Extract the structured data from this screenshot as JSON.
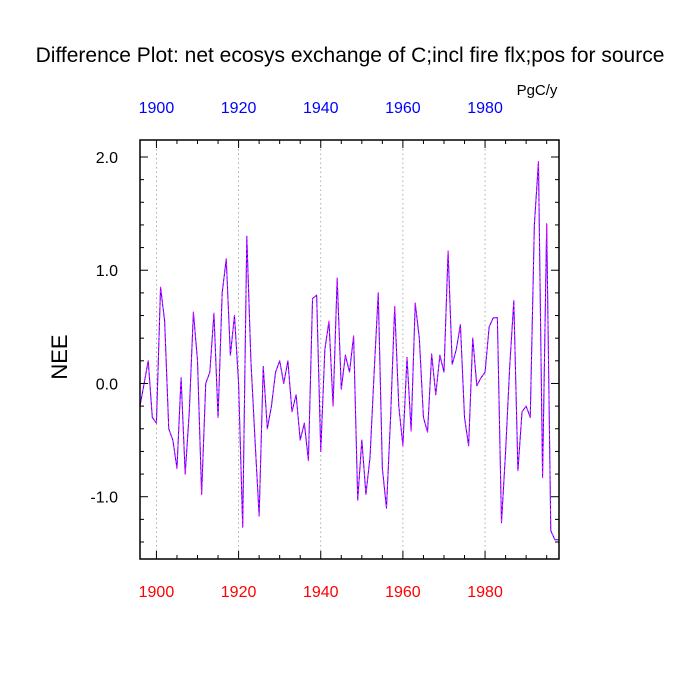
{
  "chart_data": {
    "type": "line",
    "title": "Difference Plot: net ecosys exchange of C;incl fire flx;pos for source",
    "units": "PgC/y",
    "ylabel": "NEE",
    "xlabel": "",
    "xlim": [
      1896,
      1998
    ],
    "ylim": [
      -1.55,
      2.15
    ],
    "x_ticks": [
      1900,
      1920,
      1940,
      1960,
      1980
    ],
    "x_tick_labels": [
      "1900",
      "1920",
      "1940",
      "1960",
      "1980"
    ],
    "y_ticks": [
      -1.0,
      0.0,
      1.0,
      2.0
    ],
    "y_tick_labels": [
      "-1.0",
      "0.0",
      "1.0",
      "2.0"
    ],
    "grid": "vertical dotted at major x ticks",
    "colors": {
      "bottom_axis_labels": "#ff0000",
      "top_axis_labels": "#0000ff",
      "series_a": "#0000ff",
      "series_b": "#ff00ff"
    },
    "x": [
      1896,
      1897,
      1898,
      1899,
      1900,
      1901,
      1902,
      1903,
      1904,
      1905,
      1906,
      1907,
      1908,
      1909,
      1910,
      1911,
      1912,
      1913,
      1914,
      1915,
      1916,
      1917,
      1918,
      1919,
      1920,
      1921,
      1922,
      1923,
      1924,
      1925,
      1926,
      1927,
      1928,
      1929,
      1930,
      1931,
      1932,
      1933,
      1934,
      1935,
      1936,
      1937,
      1938,
      1939,
      1940,
      1941,
      1942,
      1943,
      1944,
      1945,
      1946,
      1947,
      1948,
      1949,
      1950,
      1951,
      1952,
      1953,
      1954,
      1955,
      1956,
      1957,
      1958,
      1959,
      1960,
      1961,
      1962,
      1963,
      1964,
      1965,
      1966,
      1967,
      1968,
      1969,
      1970,
      1971,
      1972,
      1973,
      1974,
      1975,
      1976,
      1977,
      1978,
      1979,
      1980,
      1981,
      1982,
      1983,
      1984,
      1985,
      1986,
      1987,
      1988,
      1989,
      1990,
      1991,
      1992,
      1993,
      1994,
      1995,
      1996,
      1997,
      1998
    ],
    "series": [
      {
        "values": [
          -0.2,
          0.0,
          0.2,
          -0.3,
          -0.35,
          0.85,
          0.55,
          -0.4,
          -0.5,
          -0.75,
          0.05,
          -0.8,
          -0.25,
          0.63,
          0.2,
          -0.98,
          0.0,
          0.1,
          0.62,
          -0.3,
          0.8,
          1.1,
          0.25,
          0.6,
          0.0,
          -1.27,
          1.3,
          0.2,
          -0.5,
          -1.17,
          0.15,
          -0.4,
          -0.2,
          0.1,
          0.2,
          0.0,
          0.2,
          -0.25,
          -0.1,
          -0.5,
          -0.35,
          -0.68,
          0.75,
          0.78,
          -0.6,
          0.3,
          0.55,
          -0.2,
          0.93,
          -0.05,
          0.25,
          0.1,
          0.42,
          -1.03,
          -0.5,
          -0.98,
          -0.65,
          0.1,
          0.8,
          -0.75,
          -1.1,
          -0.3,
          0.68,
          -0.2,
          -0.55,
          0.23,
          -0.42,
          0.71,
          0.4,
          -0.3,
          -0.43,
          0.26,
          -0.1,
          0.25,
          0.1,
          1.17,
          0.17,
          0.3,
          0.52,
          -0.3,
          -0.55,
          0.4,
          -0.02,
          0.05,
          0.1,
          0.5,
          0.58,
          0.58,
          -1.23,
          -0.6,
          0.15,
          0.73,
          -0.77,
          -0.25,
          -0.2,
          -0.3,
          1.4,
          1.96,
          -0.83,
          1.41,
          -1.3,
          -1.38,
          -1.38
        ]
      },
      {
        "values": [
          -0.2,
          0.0,
          0.2,
          -0.3,
          -0.35,
          0.85,
          0.55,
          -0.4,
          -0.5,
          -0.75,
          0.05,
          -0.8,
          -0.25,
          0.63,
          0.2,
          -0.98,
          0.0,
          0.1,
          0.62,
          -0.3,
          0.8,
          1.1,
          0.25,
          0.6,
          0.0,
          -1.27,
          1.3,
          0.2,
          -0.5,
          -1.17,
          0.15,
          -0.4,
          -0.2,
          0.1,
          0.2,
          0.0,
          0.2,
          -0.25,
          -0.1,
          -0.5,
          -0.35,
          -0.68,
          0.75,
          0.78,
          -0.6,
          0.3,
          0.55,
          -0.2,
          0.93,
          -0.05,
          0.25,
          0.1,
          0.42,
          -1.03,
          -0.5,
          -0.98,
          -0.65,
          0.1,
          0.8,
          -0.75,
          -1.1,
          -0.3,
          0.68,
          -0.2,
          -0.55,
          0.23,
          -0.42,
          0.71,
          0.4,
          -0.3,
          -0.43,
          0.26,
          -0.1,
          0.25,
          0.1,
          1.17,
          0.17,
          0.3,
          0.52,
          -0.3,
          -0.55,
          0.4,
          -0.02,
          0.05,
          0.1,
          0.5,
          0.58,
          0.58,
          -1.23,
          -0.6,
          0.15,
          0.73,
          -0.77,
          -0.25,
          -0.2,
          -0.3,
          1.4,
          1.96,
          -0.83,
          1.41,
          -1.3,
          -1.38,
          -1.38
        ]
      }
    ]
  }
}
